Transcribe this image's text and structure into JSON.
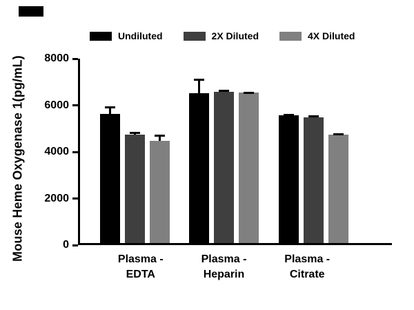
{
  "corner_mark": {
    "color": "#000000"
  },
  "chart_data": {
    "type": "bar",
    "title": "",
    "ylabel": "Mouse Heme Oxygenase 1(pg/mL)",
    "xlabel": "",
    "ylim": [
      0,
      8000
    ],
    "yticks": [
      0,
      2000,
      4000,
      6000,
      8000
    ],
    "grid": false,
    "legend_position": "top",
    "error_bars": true,
    "categories": [
      {
        "label": "Plasma - EDTA",
        "line1": "Plasma -",
        "line2": "EDTA"
      },
      {
        "label": "Plasma - Heparin",
        "line1": "Plasma -",
        "line2": "Heparin"
      },
      {
        "label": "Plasma - Citrate",
        "line1": "Plasma -",
        "line2": "Citrate"
      }
    ],
    "series": [
      {
        "name": "Undiluted",
        "color": "#000000",
        "values": [
          5550,
          6420,
          5480
        ],
        "errors": [
          330,
          620,
          60
        ]
      },
      {
        "name": "2X Diluted",
        "color": "#3f3f3f",
        "values": [
          4650,
          6500,
          5380
        ],
        "errors": [
          110,
          70,
          100
        ]
      },
      {
        "name": "4X Diluted",
        "color": "#808080",
        "values": [
          4380,
          6450,
          4650
        ],
        "errors": [
          260,
          50,
          70
        ]
      }
    ]
  }
}
